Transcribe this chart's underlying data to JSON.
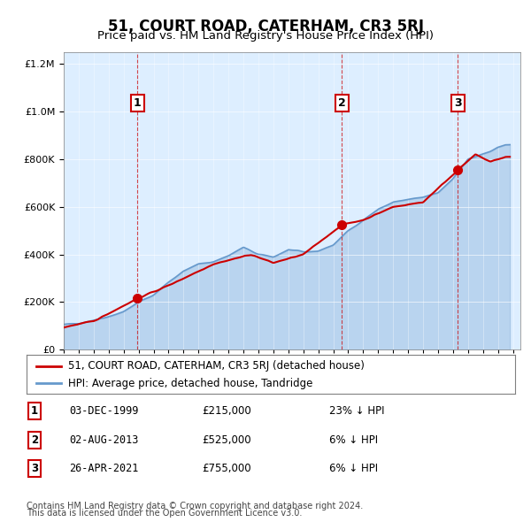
{
  "title": "51, COURT ROAD, CATERHAM, CR3 5RJ",
  "subtitle": "Price paid vs. HM Land Registry's House Price Index (HPI)",
  "legend_line1": "51, COURT ROAD, CATERHAM, CR3 5RJ (detached house)",
  "legend_line2": "HPI: Average price, detached house, Tandridge",
  "footer_line1": "Contains HM Land Registry data © Crown copyright and database right 2024.",
  "footer_line2": "This data is licensed under the Open Government Licence v3.0.",
  "sales": [
    {
      "num": 1,
      "date": "03-DEC-1999",
      "price": 215000,
      "note": "23% ↓ HPI",
      "year": 1999.92
    },
    {
      "num": 2,
      "date": "02-AUG-2013",
      "price": 525000,
      "note": "6% ↓ HPI",
      "year": 2013.58
    },
    {
      "num": 3,
      "date": "26-APR-2021",
      "price": 755000,
      "note": "6% ↓ HPI",
      "year": 2021.32
    }
  ],
  "hpi_color": "#6699cc",
  "price_color": "#cc0000",
  "sale_dot_color": "#cc0000",
  "vline_color": "#cc0000",
  "background_color": "#ddeeff",
  "plot_bg_color": "#ddeeff",
  "ylim": [
    0,
    1250000
  ],
  "xlim_start": 1995.0,
  "xlim_end": 2025.5
}
